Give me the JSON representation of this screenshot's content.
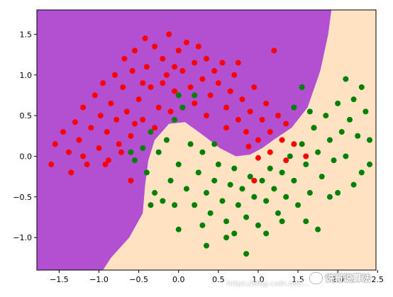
{
  "chart_data": {
    "type": "scatter",
    "title": "",
    "xlabel": "",
    "ylabel": "",
    "xlim": [
      -1.78,
      2.48
    ],
    "ylim": [
      -1.4,
      1.8
    ],
    "x_ticks": [
      -1.5,
      -1.0,
      -0.5,
      0.0,
      0.5,
      1.0,
      1.5,
      2.0,
      2.5
    ],
    "x_tick_labels": [
      "−1.5",
      "−1.0",
      "−0.5",
      "0.0",
      "0.5",
      "1.0",
      "1.5",
      "2.0",
      "2.5"
    ],
    "y_ticks": [
      -1.0,
      -0.5,
      0.0,
      0.5,
      1.0,
      1.5
    ],
    "y_tick_labels": [
      "−1.0",
      "−0.5",
      "0.0",
      "0.5",
      "1.0",
      "1.5"
    ],
    "grid": false,
    "legend": "none",
    "background_regions": [
      {
        "class": 0,
        "color": "#b34fd1",
        "side": "upper-left of decision boundary"
      },
      {
        "class": 1,
        "color": "#fde2c4",
        "side": "lower-right of decision boundary"
      }
    ],
    "decision_boundary": [
      [
        -0.95,
        -1.4
      ],
      [
        -0.85,
        -1.25
      ],
      [
        -0.62,
        -1.0
      ],
      [
        -0.45,
        -0.7
      ],
      [
        -0.42,
        -0.35
      ],
      [
        -0.38,
        -0.05
      ],
      [
        -0.3,
        0.2
      ],
      [
        -0.12,
        0.4
      ],
      [
        0.08,
        0.42
      ],
      [
        0.28,
        0.28
      ],
      [
        0.52,
        0.1
      ],
      [
        0.72,
        0.0
      ],
      [
        0.9,
        0.02
      ],
      [
        1.05,
        0.1
      ],
      [
        1.22,
        0.22
      ],
      [
        1.42,
        0.35
      ],
      [
        1.62,
        0.6
      ],
      [
        1.78,
        1.05
      ],
      [
        1.88,
        1.5
      ],
      [
        1.92,
        1.8
      ]
    ],
    "series": [
      {
        "class": 0,
        "color": "#ff0000",
        "points": [
          [
            -1.55,
            0.15
          ],
          [
            -1.45,
            0.3
          ],
          [
            -1.38,
            0.05
          ],
          [
            -1.3,
            0.42
          ],
          [
            -1.25,
            0.2
          ],
          [
            -1.2,
            0.6
          ],
          [
            -1.15,
            -0.1
          ],
          [
            -1.1,
            0.35
          ],
          [
            -1.05,
            0.75
          ],
          [
            -1.0,
            0.1
          ],
          [
            -0.98,
            0.5
          ],
          [
            -0.95,
            0.9
          ],
          [
            -0.9,
            0.3
          ],
          [
            -0.88,
            -0.05
          ],
          [
            -0.85,
            0.65
          ],
          [
            -0.8,
            1.0
          ],
          [
            -0.78,
            0.45
          ],
          [
            -0.75,
            0.15
          ],
          [
            -0.7,
            0.85
          ],
          [
            -0.68,
            1.2
          ],
          [
            -0.65,
            0.55
          ],
          [
            -0.6,
            0.25
          ],
          [
            -0.58,
            1.05
          ],
          [
            -0.55,
            1.3
          ],
          [
            -0.5,
            0.7
          ],
          [
            -0.45,
            0.45
          ],
          [
            -0.42,
            1.45
          ],
          [
            -0.4,
            1.1
          ],
          [
            -0.35,
            0.85
          ],
          [
            -0.3,
            1.35
          ],
          [
            -0.25,
            0.6
          ],
          [
            -0.2,
            1.2
          ],
          [
            -0.15,
            1.0
          ],
          [
            -0.12,
            1.5
          ],
          [
            -0.05,
            0.8
          ],
          [
            0.0,
            1.3
          ],
          [
            0.05,
            1.05
          ],
          [
            0.1,
            1.4
          ],
          [
            0.15,
            0.85
          ],
          [
            0.2,
            1.15
          ],
          [
            0.25,
            1.35
          ],
          [
            0.3,
            0.95
          ],
          [
            0.35,
            1.2
          ],
          [
            0.4,
            0.75
          ],
          [
            0.45,
            1.05
          ],
          [
            0.5,
            0.9
          ],
          [
            0.55,
            1.15
          ],
          [
            0.6,
            0.6
          ],
          [
            0.65,
            0.8
          ],
          [
            0.7,
            1.0
          ],
          [
            0.75,
            0.45
          ],
          [
            0.8,
            0.7
          ],
          [
            0.85,
            0.3
          ],
          [
            0.9,
            0.55
          ],
          [
            0.95,
            0.85
          ],
          [
            1.0,
            0.2
          ],
          [
            1.05,
            0.45
          ],
          [
            1.1,
            0.65
          ],
          [
            1.15,
            0.3
          ],
          [
            1.2,
            1.3
          ],
          [
            1.25,
            0.5
          ],
          [
            1.3,
            0.2
          ],
          [
            1.35,
            0.4
          ],
          [
            1.45,
            0.15
          ],
          [
            -1.6,
            -0.1
          ],
          [
            -1.35,
            -0.2
          ],
          [
            -1.2,
            0.0
          ],
          [
            -0.92,
            -0.1
          ],
          [
            -0.6,
            -0.3
          ],
          [
            -0.72,
            0.05
          ],
          [
            -0.2,
            0.9
          ],
          [
            0.6,
            0.35
          ],
          [
            0.88,
            0.12
          ],
          [
            1.0,
            -0.02
          ],
          [
            1.15,
            0.05
          ],
          [
            -0.3,
            0.35
          ],
          [
            -0.1,
            0.55
          ],
          [
            0.2,
            0.65
          ],
          [
            0.95,
            -0.3
          ],
          [
            1.35,
            -0.05
          ],
          [
            -0.55,
            0.4
          ],
          [
            0.35,
            0.5
          ],
          [
            0.75,
            1.15
          ],
          [
            -0.45,
            0.9
          ],
          [
            -0.05,
            1.1
          ],
          [
            1.6,
            0.0
          ],
          [
            1.7,
            0.35
          ]
        ]
      },
      {
        "class": 1,
        "color": "#008000",
        "points": [
          [
            -0.55,
            -0.05
          ],
          [
            -0.45,
            0.1
          ],
          [
            -0.4,
            -0.2
          ],
          [
            -0.35,
            0.3
          ],
          [
            -0.3,
            -0.45
          ],
          [
            -0.25,
            0.05
          ],
          [
            -0.2,
            -0.55
          ],
          [
            -0.15,
            0.2
          ],
          [
            -0.1,
            -0.3
          ],
          [
            -0.05,
            0.45
          ],
          [
            0.0,
            -0.1
          ],
          [
            0.05,
            0.6
          ],
          [
            0.1,
            -0.4
          ],
          [
            0.15,
            0.15
          ],
          [
            0.2,
            -0.6
          ],
          [
            0.25,
            -0.2
          ],
          [
            0.3,
            0.05
          ],
          [
            0.35,
            -0.45
          ],
          [
            0.4,
            -0.7
          ],
          [
            0.45,
            -0.3
          ],
          [
            0.5,
            -0.1
          ],
          [
            0.55,
            -0.55
          ],
          [
            0.6,
            -0.8
          ],
          [
            0.65,
            -0.35
          ],
          [
            0.7,
            -0.15
          ],
          [
            0.75,
            -0.6
          ],
          [
            0.8,
            -0.4
          ],
          [
            0.85,
            -0.75
          ],
          [
            0.9,
            -0.25
          ],
          [
            0.95,
            -0.5
          ],
          [
            1.0,
            -0.85
          ],
          [
            1.05,
            -0.3
          ],
          [
            1.1,
            -0.55
          ],
          [
            1.15,
            -0.15
          ],
          [
            1.2,
            -0.4
          ],
          [
            1.25,
            -0.7
          ],
          [
            1.3,
            -0.2
          ],
          [
            1.35,
            -0.5
          ],
          [
            1.4,
            0.0
          ],
          [
            1.45,
            -0.3
          ],
          [
            1.5,
            -0.6
          ],
          [
            1.55,
            0.15
          ],
          [
            1.6,
            -0.1
          ],
          [
            1.65,
            -0.45
          ],
          [
            1.7,
            0.35
          ],
          [
            1.75,
            0.05
          ],
          [
            1.8,
            -0.25
          ],
          [
            1.85,
            0.5
          ],
          [
            1.9,
            0.2
          ],
          [
            1.95,
            -0.05
          ],
          [
            2.0,
            0.65
          ],
          [
            2.05,
            0.3
          ],
          [
            2.1,
            0.0
          ],
          [
            2.15,
            0.45
          ],
          [
            2.2,
            0.7
          ],
          [
            2.25,
            0.25
          ],
          [
            2.3,
            -0.2
          ],
          [
            2.35,
            0.55
          ],
          [
            2.4,
            0.2
          ],
          [
            2.2,
            -0.35
          ],
          [
            1.9,
            -0.5
          ],
          [
            1.6,
            -0.8
          ],
          [
            1.3,
            -0.8
          ],
          [
            0.0,
            -0.9
          ],
          [
            0.35,
            -1.1
          ],
          [
            0.85,
            -1.2
          ],
          [
            1.75,
            -0.9
          ],
          [
            2.0,
            -0.45
          ],
          [
            2.4,
            -0.1
          ],
          [
            2.1,
            0.95
          ],
          [
            0.2,
            0.75
          ],
          [
            0.0,
            0.75
          ],
          [
            -0.6,
            0.05
          ],
          [
            0.45,
            0.15
          ],
          [
            -0.35,
            -0.6
          ],
          [
            0.6,
            -1.0
          ],
          [
            1.1,
            -0.95
          ],
          [
            0.3,
            -0.85
          ],
          [
            1.45,
            0.6
          ],
          [
            1.55,
            0.85
          ],
          [
            1.65,
            0.55
          ],
          [
            2.3,
            0.85
          ],
          [
            -0.05,
            -0.6
          ],
          [
            0.7,
            -0.95
          ]
        ]
      }
    ]
  },
  "watermark": {
    "label": "说哥说算法",
    "url": "https://blog.csdn.net/..."
  }
}
